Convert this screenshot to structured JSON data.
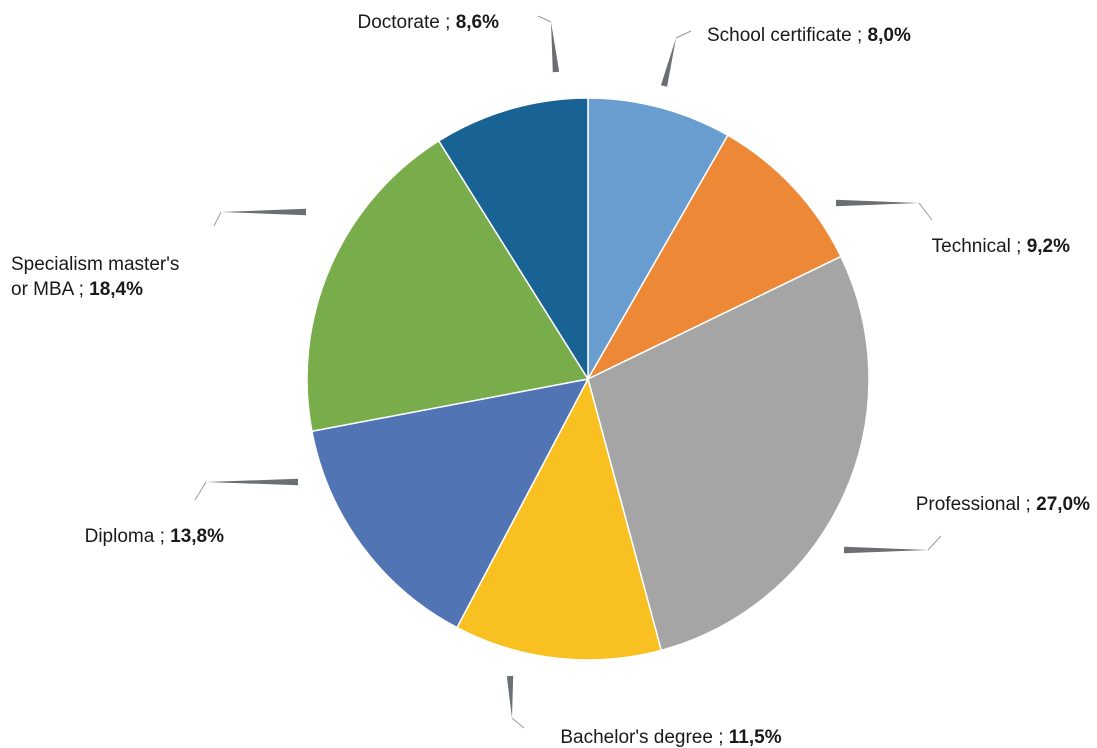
{
  "chart_data": {
    "type": "pie",
    "title": "",
    "separator": " ; ",
    "slices": [
      {
        "label": "School certificate",
        "value": 8.0,
        "value_label": "8,0%",
        "color": "#699DCF"
      },
      {
        "label": "Technical",
        "value": 9.2,
        "value_label": "9,2%",
        "color": "#EC8836"
      },
      {
        "label": "Professional",
        "value": 27.0,
        "value_label": "27,0%",
        "color": "#A5A5A5"
      },
      {
        "label": "Bachelor's degree",
        "value": 11.5,
        "value_label": "11,5%",
        "color": "#F8C021"
      },
      {
        "label": "Diploma",
        "value": 13.8,
        "value_label": "13,8%",
        "color": "#5174B5"
      },
      {
        "label": "Specialism master's or MBA",
        "label_lines": [
          "Specialism master's",
          "or MBA"
        ],
        "value": 18.4,
        "value_label": "18,4%",
        "color": "#79AC4B"
      },
      {
        "label": "Doctorate",
        "value": 8.6,
        "value_label": "8,6%",
        "color": "#186394"
      }
    ]
  }
}
